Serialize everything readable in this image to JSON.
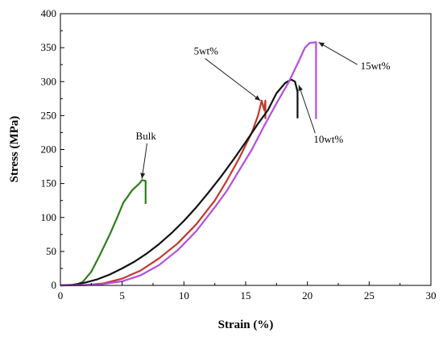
{
  "chart_data": {
    "type": "line",
    "title": "",
    "xlabel": "Strain (%)",
    "ylabel": "Stress (MPa)",
    "xlim": [
      0,
      30
    ],
    "ylim": [
      0,
      400
    ],
    "xticks": [
      0,
      5,
      10,
      15,
      20,
      25,
      30
    ],
    "yticks": [
      0,
      50,
      100,
      150,
      200,
      250,
      300,
      350,
      400
    ],
    "grid": false,
    "legend": "none",
    "series": [
      {
        "key": "bulk",
        "color": "#2e7d1e",
        "points": [
          [
            0,
            0
          ],
          [
            1.2,
            0.5
          ],
          [
            1.8,
            5
          ],
          [
            2.5,
            20
          ],
          [
            3.2,
            45
          ],
          [
            4,
            75
          ],
          [
            4.6,
            100
          ],
          [
            5.1,
            122
          ],
          [
            5.5,
            132
          ],
          [
            5.8,
            140
          ],
          [
            6.1,
            145
          ],
          [
            6.4,
            150
          ],
          [
            6.6,
            155
          ],
          [
            6.9,
            154
          ],
          [
            6.9,
            120
          ]
        ]
      },
      {
        "key": "wt5",
        "color": "#c0392b",
        "points": [
          [
            0,
            0
          ],
          [
            2,
            0.5
          ],
          [
            3.5,
            3
          ],
          [
            5,
            10
          ],
          [
            6.5,
            22
          ],
          [
            8,
            40
          ],
          [
            9.5,
            62
          ],
          [
            11,
            90
          ],
          [
            12.5,
            125
          ],
          [
            13.5,
            155
          ],
          [
            14.5,
            188
          ],
          [
            15.5,
            225
          ],
          [
            16,
            250
          ],
          [
            16.3,
            272
          ],
          [
            16.5,
            258
          ],
          [
            16.6,
            272
          ],
          [
            16.6,
            245
          ]
        ]
      },
      {
        "key": "wt10",
        "color": "#111111",
        "points": [
          [
            0,
            0
          ],
          [
            1,
            1
          ],
          [
            2,
            4
          ],
          [
            3,
            9
          ],
          [
            4,
            16
          ],
          [
            5,
            25
          ],
          [
            6,
            35
          ],
          [
            7,
            47
          ],
          [
            8,
            61
          ],
          [
            9,
            77
          ],
          [
            10,
            95
          ],
          [
            11,
            115
          ],
          [
            12,
            137
          ],
          [
            13,
            160
          ],
          [
            14,
            185
          ],
          [
            15,
            211
          ],
          [
            16,
            238
          ],
          [
            16.8,
            258
          ],
          [
            17.5,
            283
          ],
          [
            18.2,
            298
          ],
          [
            18.7,
            303
          ],
          [
            19,
            300
          ],
          [
            19.2,
            285
          ],
          [
            19.2,
            246
          ]
        ]
      },
      {
        "key": "wt15",
        "color": "#b34ee0",
        "points": [
          [
            0,
            0
          ],
          [
            3,
            1
          ],
          [
            5,
            6
          ],
          [
            6.5,
            15
          ],
          [
            8,
            30
          ],
          [
            9.5,
            52
          ],
          [
            11,
            80
          ],
          [
            12.5,
            115
          ],
          [
            13.5,
            140
          ],
          [
            14.5,
            170
          ],
          [
            15.5,
            200
          ],
          [
            16.5,
            235
          ],
          [
            17.5,
            268
          ],
          [
            18.5,
            300
          ],
          [
            19.3,
            330
          ],
          [
            19.8,
            350
          ],
          [
            20.2,
            357
          ],
          [
            20.7,
            358
          ],
          [
            20.7,
            330
          ],
          [
            20.7,
            245
          ]
        ]
      }
    ],
    "annotations": [
      {
        "key": "bulk",
        "text": "Bulk",
        "label_at": [
          6.1,
          215
        ],
        "arrow_to": [
          6.6,
          157
        ]
      },
      {
        "key": "wt5",
        "text": "5wt%",
        "label_at": [
          10.8,
          340
        ],
        "arrow_to": [
          16.2,
          272
        ]
      },
      {
        "key": "wt10",
        "text": "10wt%",
        "label_at": [
          20.5,
          210
        ],
        "arrow_to": [
          19.3,
          295
        ]
      },
      {
        "key": "wt15",
        "text": "15wt%",
        "label_at": [
          24.3,
          318
        ],
        "arrow_to": [
          20.9,
          358
        ]
      }
    ]
  }
}
